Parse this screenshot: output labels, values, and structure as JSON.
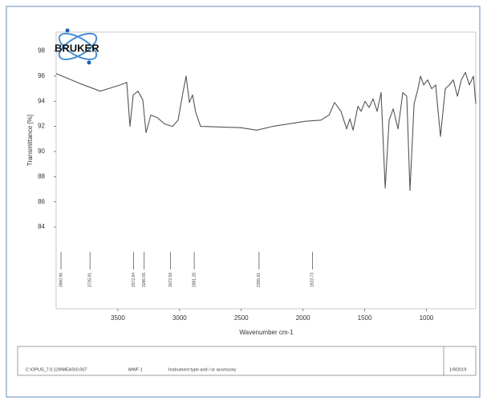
{
  "chart_data": {
    "type": "line",
    "logo": "BRUKER",
    "y_label": "Transmittance [%]",
    "x_label": "Wavenumber cm-1",
    "x": [
      4000,
      3805,
      3642,
      3480,
      3428,
      3402,
      3376,
      3337,
      3298,
      3272,
      3233,
      3181,
      3122,
      3057,
      3012,
      2973,
      2947,
      2921,
      2895,
      2869,
      2830,
      2505,
      2375,
      2245,
      1985,
      1855,
      1789,
      1744,
      1692,
      1646,
      1620,
      1594,
      1555,
      1529,
      1497,
      1464,
      1432,
      1399,
      1367,
      1334,
      1302,
      1269,
      1230,
      1191,
      1159,
      1133,
      1100,
      1068,
      1048,
      1022,
      990,
      957,
      925,
      886,
      847,
      814,
      782,
      749,
      717,
      684,
      652,
      619,
      600
    ],
    "values": [
      96.2,
      95.4,
      94.8,
      95.3,
      95.5,
      92.0,
      94.5,
      94.8,
      94.1,
      91.5,
      92.9,
      92.7,
      92.2,
      92.0,
      92.5,
      94.7,
      96.0,
      93.9,
      94.5,
      93.1,
      92.0,
      91.9,
      91.7,
      92.0,
      92.4,
      92.5,
      92.9,
      93.9,
      93.2,
      91.8,
      92.6,
      91.7,
      93.6,
      93.2,
      94.0,
      93.5,
      94.2,
      93.2,
      94.7,
      87.1,
      92.5,
      93.4,
      91.8,
      94.7,
      94.4,
      86.9,
      93.8,
      95.0,
      96.0,
      95.3,
      95.7,
      95.0,
      95.3,
      91.2,
      95.0,
      95.3,
      95.7,
      94.4,
      95.7,
      96.3,
      95.3,
      96.0,
      93.8
    ],
    "color": "#555555",
    "xlim": [
      4000,
      600
    ],
    "xticks": [
      3500,
      3000,
      2500,
      2000,
      1500,
      1000
    ],
    "ylim": [
      77.5,
      99.5
    ],
    "yticks": [
      98,
      96,
      94,
      92,
      90,
      88,
      86,
      84
    ],
    "peak_labels": [
      3960.96,
      3725.91,
      3372.84,
      3286.65,
      3072.59,
      2881.28,
      2355.91,
      1923.73
    ]
  },
  "footer": {
    "file": "C:\\OPUS_7.0.129\\MEAS\\0.007",
    "operator": "MWF 1",
    "instrument": "Instrument type and / or accessory",
    "date": "1/9/2019"
  }
}
